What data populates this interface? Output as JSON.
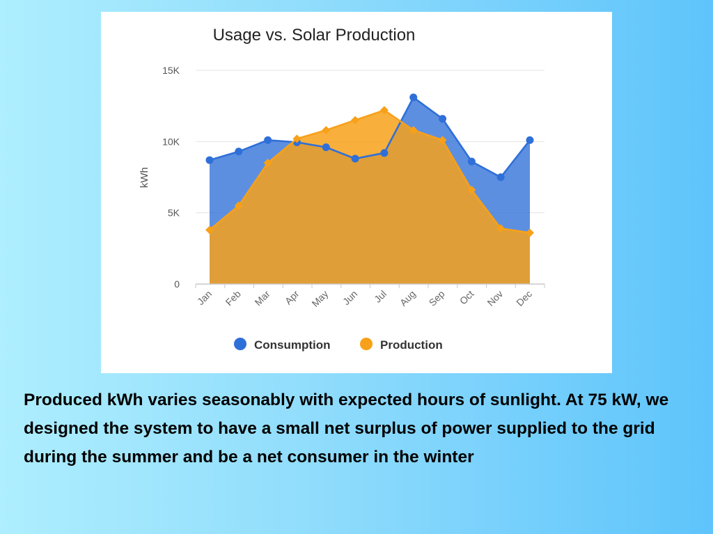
{
  "chart_data": {
    "type": "area",
    "title": "Usage vs. Solar Production",
    "xlabel": "",
    "ylabel": "kWh",
    "ylim": [
      0,
      15000
    ],
    "yticks": [
      0,
      5000,
      10000,
      15000
    ],
    "ytick_labels": [
      "0",
      "5K",
      "10K",
      "15K"
    ],
    "grid": true,
    "legend": "bottom",
    "categories": [
      "Jan",
      "Feb",
      "Mar",
      "Apr",
      "May",
      "Jun",
      "Jul",
      "Aug",
      "Sep",
      "Oct",
      "Nov",
      "Dec"
    ],
    "series": [
      {
        "name": "Consumption",
        "color": "#2f6fd8",
        "marker": "circle",
        "values": [
          8700,
          9300,
          10100,
          9950,
          9600,
          8800,
          9200,
          13100,
          11600,
          8600,
          7500,
          10100
        ]
      },
      {
        "name": "Production",
        "color": "#f7a11a",
        "marker": "diamond",
        "values": [
          3800,
          5500,
          8500,
          10200,
          10800,
          11500,
          12200,
          10800,
          10100,
          6600,
          3900,
          3600
        ]
      }
    ]
  },
  "caption": {
    "text": "Produced kWh varies seasonably with expected hours of sunlight.  At 75 kW, we designed the system to have a small net surplus of power supplied to the grid during the summer and be a net consumer in the winter"
  }
}
